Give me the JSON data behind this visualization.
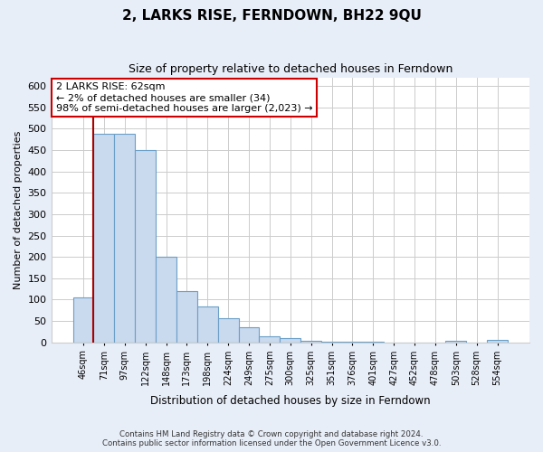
{
  "title": "2, LARKS RISE, FERNDOWN, BH22 9QU",
  "subtitle": "Size of property relative to detached houses in Ferndown",
  "xlabel": "Distribution of detached houses by size in Ferndown",
  "ylabel": "Number of detached properties",
  "bar_labels": [
    "46sqm",
    "71sqm",
    "97sqm",
    "122sqm",
    "148sqm",
    "173sqm",
    "198sqm",
    "224sqm",
    "249sqm",
    "275sqm",
    "300sqm",
    "325sqm",
    "351sqm",
    "376sqm",
    "401sqm",
    "427sqm",
    "452sqm",
    "478sqm",
    "503sqm",
    "528sqm",
    "554sqm"
  ],
  "bar_values": [
    105,
    488,
    487,
    450,
    200,
    120,
    83,
    57,
    35,
    15,
    10,
    4,
    2,
    1,
    1,
    0,
    0,
    0,
    4,
    0,
    5
  ],
  "red_line_x": 1,
  "bar_color_fill": "#c9d9ee",
  "bar_color_edge": "#6b9fc8",
  "red_line_color": "#aa0000",
  "annotation_text": "2 LARKS RISE: 62sqm\n← 2% of detached houses are smaller (34)\n98% of semi-detached houses are larger (2,023) →",
  "annotation_box_color": "#ffffff",
  "annotation_box_edge": "#cc0000",
  "ylim": [
    0,
    620
  ],
  "yticks": [
    0,
    50,
    100,
    150,
    200,
    250,
    300,
    350,
    400,
    450,
    500,
    550,
    600
  ],
  "footer_line1": "Contains HM Land Registry data © Crown copyright and database right 2024.",
  "footer_line2": "Contains public sector information licensed under the Open Government Licence v3.0.",
  "fig_background_color": "#e8eef8",
  "axes_background_color": "#ffffff",
  "grid_color": "#cccccc"
}
